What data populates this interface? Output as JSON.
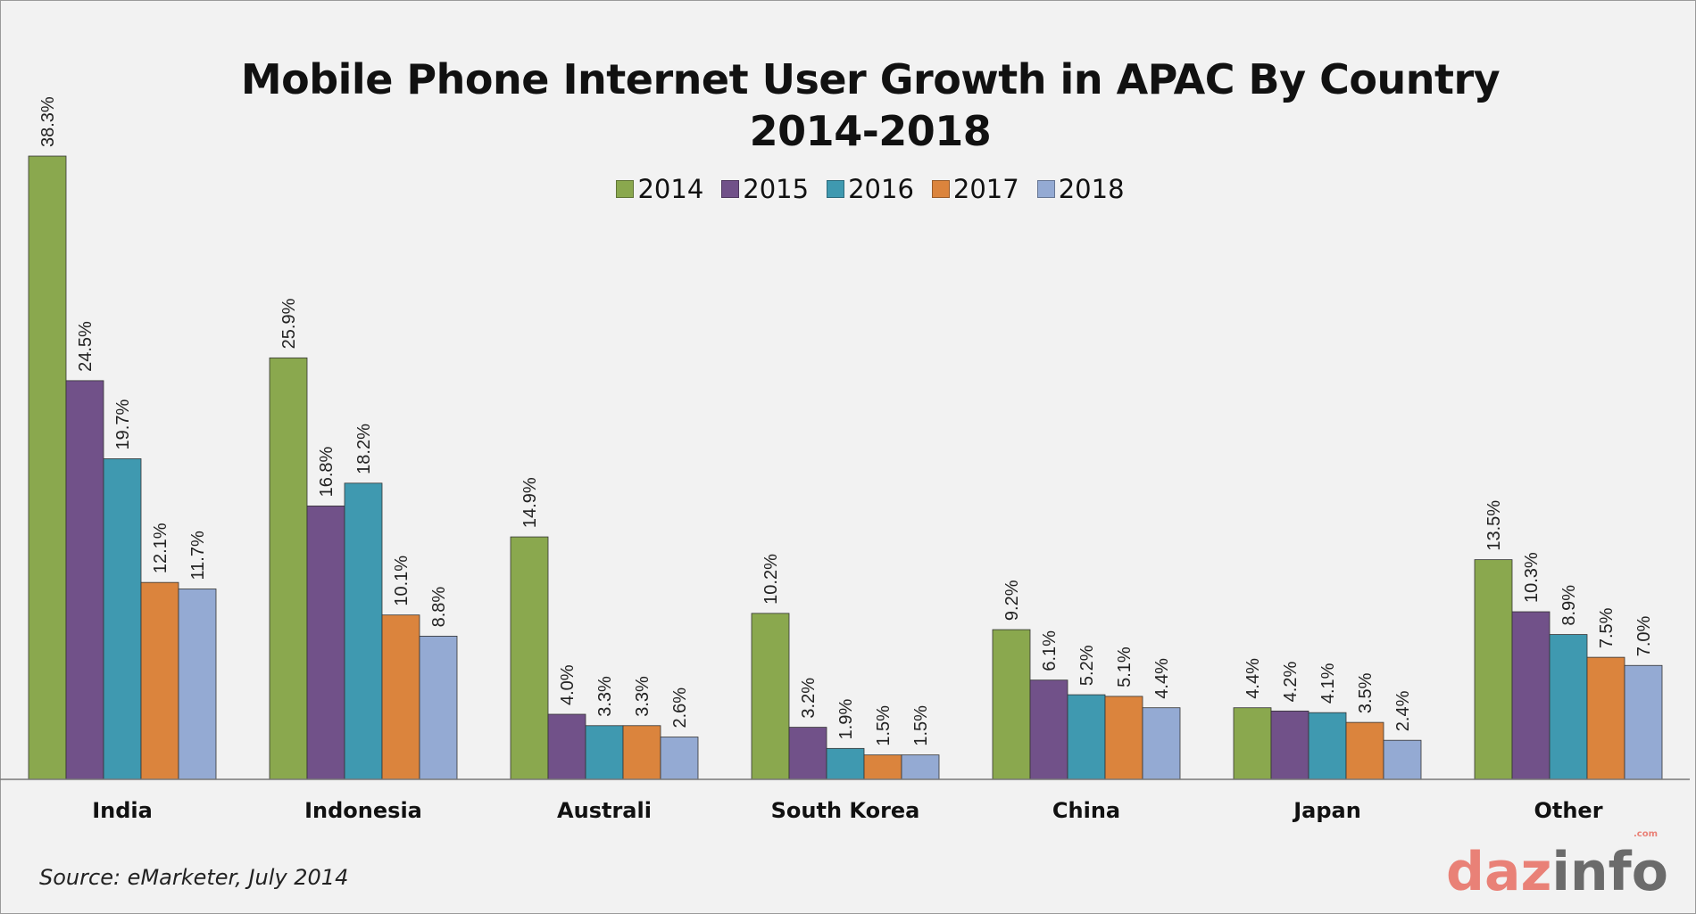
{
  "chart_data": {
    "type": "bar",
    "title": "Mobile Phone Internet User Growth in APAC By Country",
    "subtitle": "2014-2018",
    "categories": [
      "India",
      "Indonesia",
      "Australi",
      "South Korea",
      "China",
      "Japan",
      "Other"
    ],
    "series": [
      {
        "name": "2014",
        "color": "#8aa84e",
        "values": [
          38.3,
          25.9,
          14.9,
          10.2,
          9.2,
          4.4,
          13.5
        ]
      },
      {
        "name": "2015",
        "color": "#715189",
        "values": [
          24.5,
          16.8,
          4.0,
          3.2,
          6.1,
          4.2,
          10.3
        ]
      },
      {
        "name": "2016",
        "color": "#3f99b0",
        "values": [
          19.7,
          18.2,
          3.3,
          1.9,
          5.2,
          4.1,
          8.9
        ]
      },
      {
        "name": "2017",
        "color": "#db843d",
        "values": [
          12.1,
          10.1,
          3.3,
          1.5,
          5.1,
          3.5,
          7.5
        ]
      },
      {
        "name": "2018",
        "color": "#94aad3",
        "values": [
          11.7,
          8.8,
          2.6,
          1.5,
          4.4,
          2.4,
          7.0
        ]
      }
    ],
    "value_format": "%",
    "ylim": [
      0,
      40
    ],
    "grid": false,
    "legend_position": "top"
  },
  "source": "Source: eMarketer, July 2014",
  "logo": {
    "part1": "daz",
    "part2": "info",
    "suffix": ".com"
  }
}
